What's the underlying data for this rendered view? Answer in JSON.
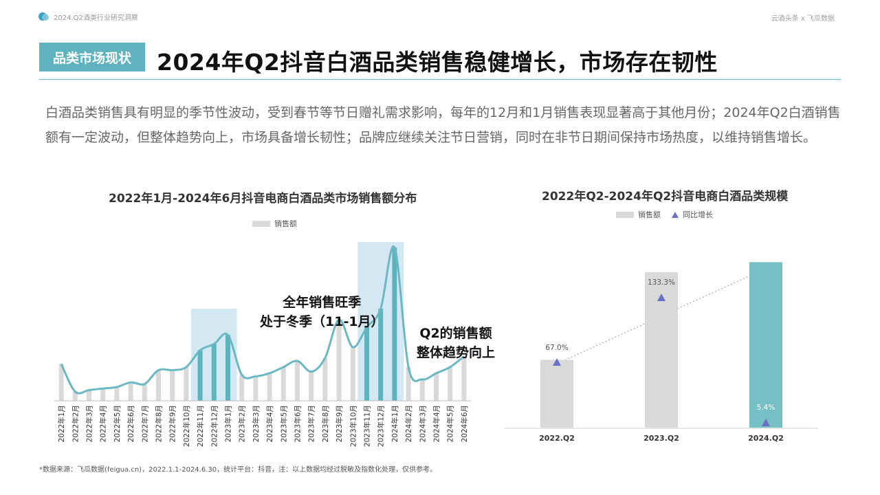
{
  "header": {
    "report_label": "2024.Q2酒类行业研究洞察",
    "source_brand": "云酒头条 x 飞瓜数据"
  },
  "section_tag": "品类市场现状",
  "page_title": "2024年Q2抖音白酒品类销售稳健增长，市场存在韧性",
  "intro": "白酒品类销售具有明显的季节性波动，受到春节等节日赠礼需求影响，每年的12月和1月销售表现显著高于其他月份；2024年Q2白酒销售额有一定波动，但整体趋势向上，市场具备增长韧性；品牌应继续关注节日营销，同时在非节日期间保持市场热度，以维持销售增长。",
  "annotations": {
    "winter_line1": "全年销售旺季",
    "winter_line2": "处于冬季（11-1月）",
    "q2_line1": "Q2的销售额",
    "q2_line2": "整体趋势向上"
  },
  "footnote": "*数据来源：飞瓜数据(feigua.cn)，2022.1.1-2024.6.30，统计平台：抖音，注：以上数据均经过脱敏及指数化处理，仅供参考。",
  "chart_data": [
    {
      "type": "bar",
      "title": "2022年1月-2024年6月抖音电商白酒品类市场销售额分布",
      "legend": [
        "销售额"
      ],
      "categories": [
        "2022年1月",
        "2022年2月",
        "2022年3月",
        "2022年4月",
        "2022年5月",
        "2022年6月",
        "2022年7月",
        "2022年8月",
        "2022年9月",
        "2022年10月",
        "2022年11月",
        "2022年12月",
        "2023年1月",
        "2023年2月",
        "2023年3月",
        "2023年4月",
        "2023年5月",
        "2023年6月",
        "2023年7月",
        "2023年8月",
        "2023年9月",
        "2023年10月",
        "2023年11月",
        "2023年12月",
        "2024年1月",
        "2024年2月",
        "2024年3月",
        "2024年4月",
        "2024年5月",
        "2024年6月"
      ],
      "values": [
        24,
        6,
        7,
        8,
        9,
        12,
        11,
        20,
        20,
        22,
        33,
        37,
        43,
        17,
        16,
        18,
        22,
        26,
        19,
        28,
        53,
        35,
        48,
        60,
        100,
        22,
        14,
        18,
        22,
        29
      ],
      "highlight_ranges": [
        [
          10,
          12
        ],
        [
          22,
          24
        ]
      ],
      "highlight_color": "#5fb3be",
      "bar_color": "#d9d9d9",
      "line_color": "#6bb8c2",
      "band_color": "#d3e8f2"
    },
    {
      "type": "bar",
      "title": "2022年Q2-2024年Q2抖音电商白酒品类规模",
      "legend": [
        "销售额",
        "同比增长"
      ],
      "categories": [
        "2022.Q2",
        "2023.Q2",
        "2024.Q2"
      ],
      "values": [
        34,
        78,
        83
      ],
      "growth_labels": [
        "67.0%",
        "133.3%",
        "5.4%"
      ],
      "growth": [
        67.0,
        133.3,
        5.4
      ],
      "bar_colors": [
        "#d9d9d9",
        "#d9d9d9",
        "#76bfc4"
      ],
      "marker_color": "#6a6fc8"
    }
  ]
}
